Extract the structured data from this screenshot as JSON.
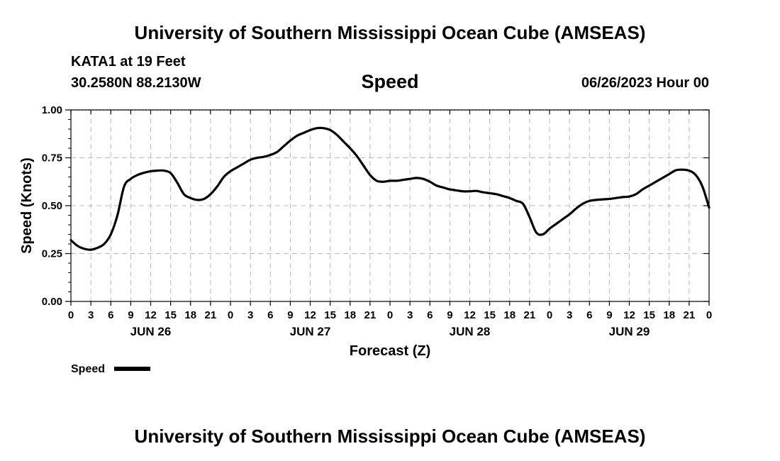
{
  "header": {
    "title": "University of Southern Mississippi Ocean Cube (AMSEAS)",
    "station": "KATA1 at 19 Feet",
    "coordinates": "30.2580N  88.2130W",
    "run_time": "06/26/2023 Hour 00"
  },
  "footer": {
    "title": "University of Southern Mississippi Ocean Cube (AMSEAS)"
  },
  "chart_data": {
    "type": "line",
    "title": "Speed",
    "xlabel": "Forecast (Z)",
    "ylabel": "Speed (Knots)",
    "xlim": [
      0,
      96
    ],
    "ylim": [
      0,
      1
    ],
    "yticks": [
      "0.00",
      "0.25",
      "0.50",
      "0.75",
      "1.00"
    ],
    "xticks": [
      "0",
      "3",
      "6",
      "9",
      "12",
      "15",
      "18",
      "21",
      "0",
      "3",
      "6",
      "9",
      "12",
      "15",
      "18",
      "21",
      "0",
      "3",
      "6",
      "9",
      "12",
      "15",
      "18",
      "21",
      "0",
      "3",
      "6",
      "9",
      "12",
      "15",
      "18",
      "21",
      "0"
    ],
    "day_labels": [
      {
        "label": "JUN 26",
        "hour": 12
      },
      {
        "label": "JUN 27",
        "hour": 36
      },
      {
        "label": "JUN 28",
        "hour": 60
      },
      {
        "label": "JUN 29",
        "hour": 84
      }
    ],
    "grid": true,
    "legend": {
      "position": "bottom-left",
      "entries": [
        "Speed"
      ]
    },
    "series": [
      {
        "name": "Speed",
        "color": "#000000",
        "x": [
          0,
          1,
          2,
          3,
          4,
          5,
          6,
          7,
          8,
          9,
          10,
          11,
          12,
          13,
          14,
          15,
          16,
          17,
          18,
          19,
          20,
          21,
          22,
          23,
          24,
          25,
          26,
          27,
          28,
          29,
          30,
          31,
          32,
          33,
          34,
          35,
          36,
          37,
          38,
          39,
          40,
          41,
          42,
          43,
          44,
          45,
          46,
          47,
          48,
          49,
          50,
          51,
          52,
          53,
          54,
          55,
          56,
          57,
          58,
          59,
          60,
          61,
          62,
          63,
          64,
          65,
          66,
          67,
          68,
          69,
          70,
          71,
          72,
          73,
          74,
          75,
          76,
          77,
          78,
          79,
          80,
          81,
          82,
          83,
          84,
          85,
          86,
          87,
          88,
          89,
          90,
          91,
          92,
          93,
          94,
          95,
          96
        ],
        "y": [
          0.32,
          0.29,
          0.275,
          0.27,
          0.28,
          0.3,
          0.35,
          0.45,
          0.6,
          0.64,
          0.66,
          0.672,
          0.68,
          0.683,
          0.683,
          0.67,
          0.62,
          0.56,
          0.54,
          0.53,
          0.535,
          0.56,
          0.6,
          0.65,
          0.68,
          0.7,
          0.72,
          0.74,
          0.75,
          0.755,
          0.765,
          0.78,
          0.81,
          0.84,
          0.865,
          0.88,
          0.895,
          0.905,
          0.905,
          0.895,
          0.87,
          0.835,
          0.8,
          0.76,
          0.71,
          0.66,
          0.63,
          0.625,
          0.63,
          0.63,
          0.635,
          0.64,
          0.645,
          0.64,
          0.625,
          0.605,
          0.595,
          0.585,
          0.58,
          0.575,
          0.575,
          0.577,
          0.57,
          0.565,
          0.56,
          0.55,
          0.54,
          0.525,
          0.51,
          0.44,
          0.36,
          0.35,
          0.38,
          0.405,
          0.43,
          0.455,
          0.485,
          0.51,
          0.525,
          0.53,
          0.533,
          0.535,
          0.54,
          0.545,
          0.548,
          0.56,
          0.585,
          0.605,
          0.625,
          0.645,
          0.665,
          0.685,
          0.688,
          0.683,
          0.66,
          0.6,
          0.49
        ]
      }
    ]
  }
}
